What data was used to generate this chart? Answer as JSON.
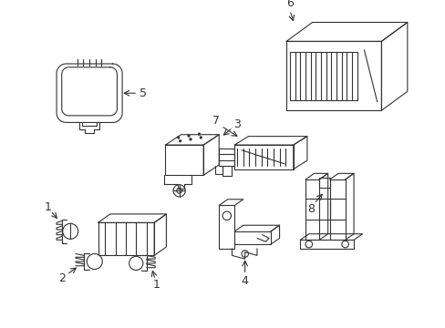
{
  "background_color": "#ffffff",
  "line_color": "#333333",
  "line_width": 0.8,
  "fig_width": 4.89,
  "fig_height": 3.6,
  "dpi": 100
}
